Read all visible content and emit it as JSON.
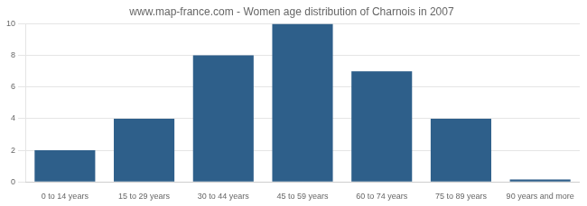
{
  "chart_data": {
    "type": "bar",
    "title": "www.map-france.com - Women age distribution of Charnois in 2007",
    "categories": [
      "0 to 14 years",
      "15 to 29 years",
      "30 to 44 years",
      "45 to 59 years",
      "60 to 74 years",
      "75 to 89 years",
      "90 years and more"
    ],
    "values": [
      2,
      4,
      8,
      10,
      7,
      4,
      0.15
    ],
    "color": "#2e5f8a",
    "ylim": [
      0,
      10
    ],
    "yticks": [
      0,
      2,
      4,
      6,
      8,
      10
    ],
    "grid": true
  }
}
